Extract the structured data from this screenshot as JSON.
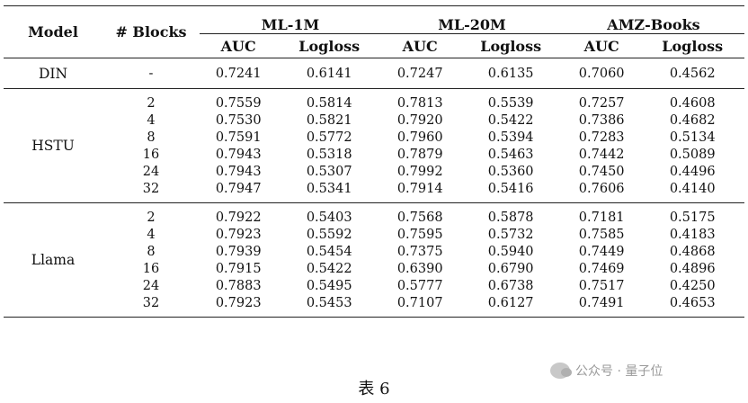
{
  "table": {
    "headers": {
      "model": "Model",
      "blocks": "# Blocks",
      "groups": [
        "ML-1M",
        "ML-20M",
        "AMZ-Books"
      ],
      "metrics": [
        "AUC",
        "Logloss"
      ]
    },
    "din": {
      "model": "DIN",
      "blocks": "-",
      "values": [
        "0.7241",
        "0.6141",
        "0.7247",
        "0.6135",
        "0.7060",
        "0.4562"
      ]
    },
    "hstu": {
      "model": "HSTU",
      "rows": [
        {
          "blocks": "2",
          "values": [
            "0.7559",
            "0.5814",
            "0.7813",
            "0.5539",
            "0.7257",
            "0.4608"
          ]
        },
        {
          "blocks": "4",
          "values": [
            "0.7530",
            "0.5821",
            "0.7920",
            "0.5422",
            "0.7386",
            "0.4682"
          ]
        },
        {
          "blocks": "8",
          "values": [
            "0.7591",
            "0.5772",
            "0.7960",
            "0.5394",
            "0.7283",
            "0.5134"
          ]
        },
        {
          "blocks": "16",
          "values": [
            "0.7943",
            "0.5318",
            "0.7879",
            "0.5463",
            "0.7442",
            "0.5089"
          ]
        },
        {
          "blocks": "24",
          "values": [
            "0.7943",
            "0.5307",
            "0.7992",
            "0.5360",
            "0.7450",
            "0.4496"
          ]
        },
        {
          "blocks": "32",
          "values": [
            "0.7947",
            "0.5341",
            "0.7914",
            "0.5416",
            "0.7606",
            "0.4140"
          ]
        }
      ]
    },
    "llama": {
      "model": "Llama",
      "rows": [
        {
          "blocks": "2",
          "values": [
            "0.7922",
            "0.5403",
            "0.7568",
            "0.5878",
            "0.7181",
            "0.5175"
          ]
        },
        {
          "blocks": "4",
          "values": [
            "0.7923",
            "0.5592",
            "0.7595",
            "0.5732",
            "0.7585",
            "0.4183"
          ]
        },
        {
          "blocks": "8",
          "values": [
            "0.7939",
            "0.5454",
            "0.7375",
            "0.5940",
            "0.7449",
            "0.4868"
          ]
        },
        {
          "blocks": "16",
          "values": [
            "0.7915",
            "0.5422",
            "0.6390",
            "0.6790",
            "0.7469",
            "0.4896"
          ]
        },
        {
          "blocks": "24",
          "values": [
            "0.7883",
            "0.5495",
            "0.5777",
            "0.6738",
            "0.7517",
            "0.4250"
          ]
        },
        {
          "blocks": "32",
          "values": [
            "0.7923",
            "0.5453",
            "0.7107",
            "0.6127",
            "0.7491",
            "0.4653"
          ]
        }
      ]
    }
  },
  "caption": "表 6",
  "watermark": {
    "icon": "wechat-icon",
    "text": "公众号 · 量子位"
  }
}
